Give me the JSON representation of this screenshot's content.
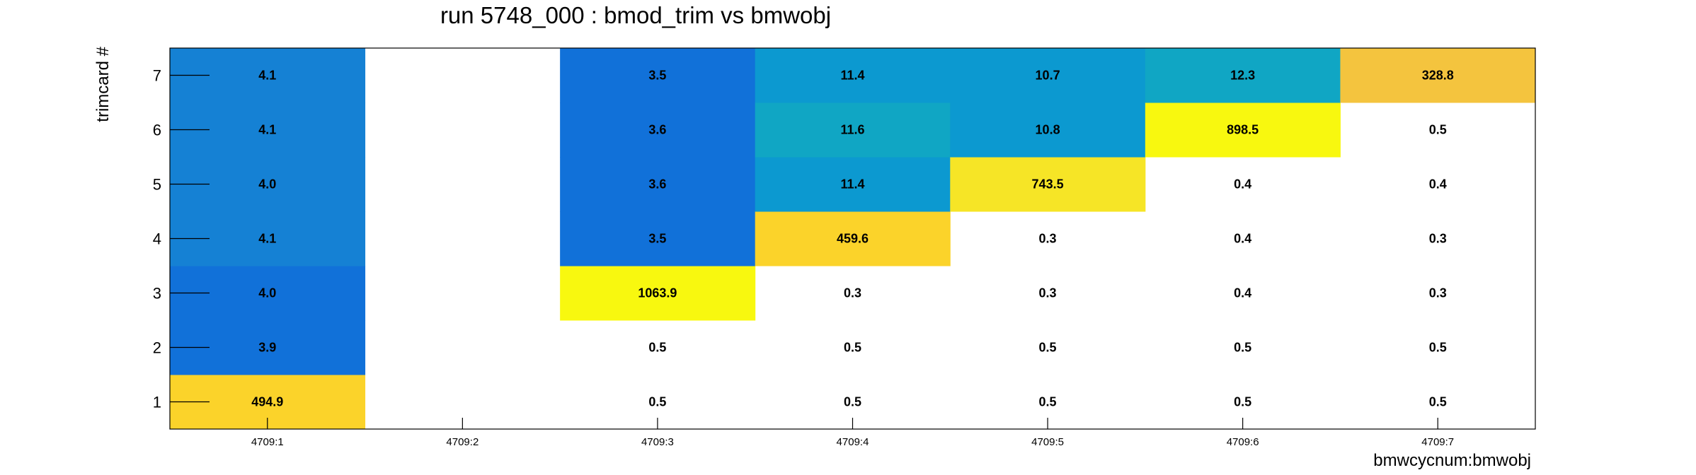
{
  "chart_data": {
    "type": "heatmap",
    "title": "run 5748_000 : bmod_trim vs bmwobj",
    "xlabel": "bmwcycnum:bmwobj",
    "ylabel": "trimcard #",
    "x_categories": [
      "4709:1",
      "4709:2",
      "4709:3",
      "4709:4",
      "4709:5",
      "4709:6",
      "4709:7"
    ],
    "y_categories": [
      "1",
      "2",
      "3",
      "4",
      "5",
      "6",
      "7"
    ],
    "grid": false,
    "cells": [
      {
        "x": "4709:1",
        "y": "1",
        "value": 494.9,
        "label": "494.9",
        "color": "#fbd32a"
      },
      {
        "x": "4709:1",
        "y": "2",
        "value": 3.9,
        "label": "3.9",
        "color": "#1171d9"
      },
      {
        "x": "4709:1",
        "y": "3",
        "value": 4.0,
        "label": "4.0",
        "color": "#1171d9"
      },
      {
        "x": "4709:1",
        "y": "4",
        "value": 4.1,
        "label": "4.1",
        "color": "#1581d4"
      },
      {
        "x": "4709:1",
        "y": "5",
        "value": 4.0,
        "label": "4.0",
        "color": "#1581d4"
      },
      {
        "x": "4709:1",
        "y": "6",
        "value": 4.1,
        "label": "4.1",
        "color": "#1581d4"
      },
      {
        "x": "4709:1",
        "y": "7",
        "value": 4.1,
        "label": "4.1",
        "color": "#1581d4"
      },
      {
        "x": "4709:3",
        "y": "1",
        "value": 0.5,
        "label": "0.5",
        "color": ""
      },
      {
        "x": "4709:3",
        "y": "2",
        "value": 0.5,
        "label": "0.5",
        "color": ""
      },
      {
        "x": "4709:3",
        "y": "3",
        "value": 1063.9,
        "label": "1063.9",
        "color": "#f8f80f"
      },
      {
        "x": "4709:3",
        "y": "4",
        "value": 3.5,
        "label": "3.5",
        "color": "#1171d9"
      },
      {
        "x": "4709:3",
        "y": "5",
        "value": 3.6,
        "label": "3.6",
        "color": "#1171d9"
      },
      {
        "x": "4709:3",
        "y": "6",
        "value": 3.6,
        "label": "3.6",
        "color": "#1171d9"
      },
      {
        "x": "4709:3",
        "y": "7",
        "value": 3.5,
        "label": "3.5",
        "color": "#1171d9"
      },
      {
        "x": "4709:4",
        "y": "1",
        "value": 0.5,
        "label": "0.5",
        "color": ""
      },
      {
        "x": "4709:4",
        "y": "2",
        "value": 0.5,
        "label": "0.5",
        "color": ""
      },
      {
        "x": "4709:4",
        "y": "3",
        "value": 0.3,
        "label": "0.3",
        "color": ""
      },
      {
        "x": "4709:4",
        "y": "4",
        "value": 459.6,
        "label": "459.6",
        "color": "#fbd32a"
      },
      {
        "x": "4709:4",
        "y": "5",
        "value": 11.4,
        "label": "11.4",
        "color": "#0c99d0"
      },
      {
        "x": "4709:4",
        "y": "6",
        "value": 11.6,
        "label": "11.6",
        "color": "#10a6c4"
      },
      {
        "x": "4709:4",
        "y": "7",
        "value": 11.4,
        "label": "11.4",
        "color": "#0c99d0"
      },
      {
        "x": "4709:5",
        "y": "1",
        "value": 0.5,
        "label": "0.5",
        "color": ""
      },
      {
        "x": "4709:5",
        "y": "2",
        "value": 0.5,
        "label": "0.5",
        "color": ""
      },
      {
        "x": "4709:5",
        "y": "3",
        "value": 0.3,
        "label": "0.3",
        "color": ""
      },
      {
        "x": "4709:5",
        "y": "4",
        "value": 0.3,
        "label": "0.3",
        "color": ""
      },
      {
        "x": "4709:5",
        "y": "5",
        "value": 743.5,
        "label": "743.5",
        "color": "#f6e526"
      },
      {
        "x": "4709:5",
        "y": "6",
        "value": 10.8,
        "label": "10.8",
        "color": "#0c99d0"
      },
      {
        "x": "4709:5",
        "y": "7",
        "value": 10.7,
        "label": "10.7",
        "color": "#0c99d0"
      },
      {
        "x": "4709:6",
        "y": "1",
        "value": 0.5,
        "label": "0.5",
        "color": ""
      },
      {
        "x": "4709:6",
        "y": "2",
        "value": 0.5,
        "label": "0.5",
        "color": ""
      },
      {
        "x": "4709:6",
        "y": "3",
        "value": 0.4,
        "label": "0.4",
        "color": ""
      },
      {
        "x": "4709:6",
        "y": "4",
        "value": 0.4,
        "label": "0.4",
        "color": ""
      },
      {
        "x": "4709:6",
        "y": "5",
        "value": 0.4,
        "label": "0.4",
        "color": ""
      },
      {
        "x": "4709:6",
        "y": "6",
        "value": 898.5,
        "label": "898.5",
        "color": "#f8f80f"
      },
      {
        "x": "4709:6",
        "y": "7",
        "value": 12.3,
        "label": "12.3",
        "color": "#10a6c4"
      },
      {
        "x": "4709:7",
        "y": "1",
        "value": 0.5,
        "label": "0.5",
        "color": ""
      },
      {
        "x": "4709:7",
        "y": "2",
        "value": 0.5,
        "label": "0.5",
        "color": ""
      },
      {
        "x": "4709:7",
        "y": "3",
        "value": 0.3,
        "label": "0.3",
        "color": ""
      },
      {
        "x": "4709:7",
        "y": "4",
        "value": 0.3,
        "label": "0.3",
        "color": ""
      },
      {
        "x": "4709:7",
        "y": "5",
        "value": 0.4,
        "label": "0.4",
        "color": ""
      },
      {
        "x": "4709:7",
        "y": "6",
        "value": 0.5,
        "label": "0.5",
        "color": ""
      },
      {
        "x": "4709:7",
        "y": "7",
        "value": 328.8,
        "label": "328.8",
        "color": "#f4c43e"
      }
    ]
  }
}
